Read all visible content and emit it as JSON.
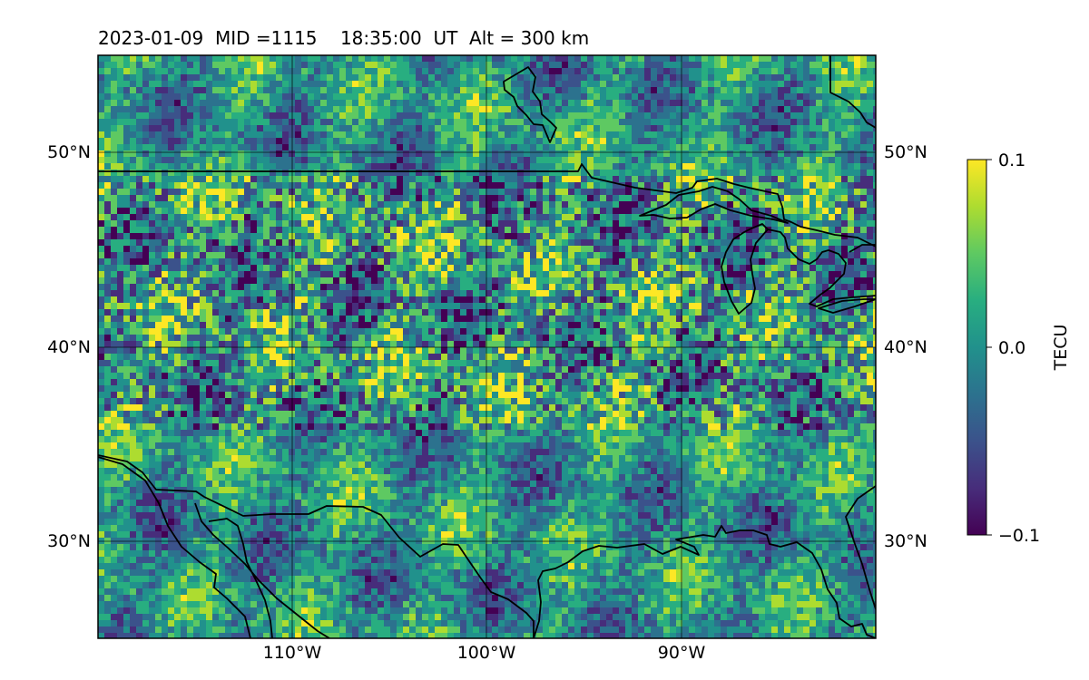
{
  "title": "2023-01-09  MID =1115    18:35:00  UT  Alt = 300 km",
  "map": {
    "lon_range": [
      -120,
      -80
    ],
    "lat_range": [
      25,
      55
    ],
    "lon_ticks": [
      {
        "value": -110,
        "label": "110°W"
      },
      {
        "value": -100,
        "label": "100°W"
      },
      {
        "value": -90,
        "label": "90°W"
      }
    ],
    "lat_ticks": [
      {
        "value": 50,
        "label": "50°N"
      },
      {
        "value": 40,
        "label": "40°N"
      },
      {
        "value": 30,
        "label": "30°N"
      }
    ],
    "gridlines": true,
    "colormap": "viridis"
  },
  "colorbar": {
    "label": "TECU",
    "min": -0.1,
    "max": 0.1,
    "ticks": [
      {
        "value": 0.1,
        "label": "0.1"
      },
      {
        "value": 0.0,
        "label": "0.0"
      },
      {
        "value": -0.1,
        "label": "−0.1"
      }
    ],
    "colors": [
      "#440154",
      "#472d7b",
      "#3b528b",
      "#2c728e",
      "#21918c",
      "#28ae80",
      "#5ec962",
      "#addc30",
      "#fde725"
    ]
  }
}
